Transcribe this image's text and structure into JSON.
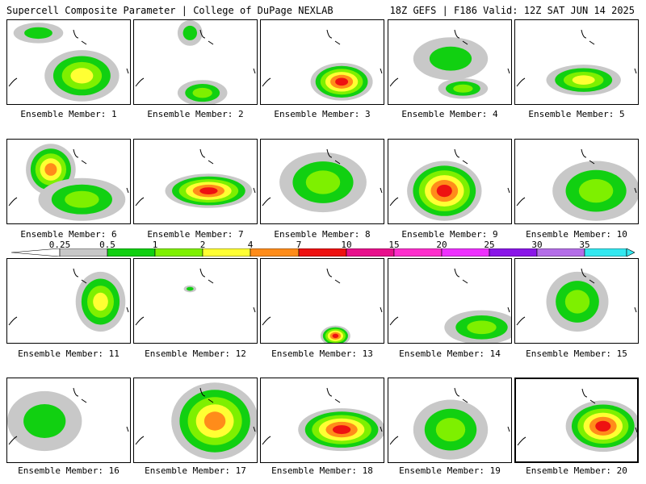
{
  "header": {
    "left_title": "Supercell Composite Parameter | College of DuPage NEXLAB",
    "right_title": "18Z GEFS | F186 Valid: 12Z SAT JUN 14 2025"
  },
  "colorbar": {
    "labels": [
      "0.25",
      "0.5",
      "1",
      "2",
      "4",
      "7",
      "10",
      "15",
      "20",
      "25",
      "30",
      "35"
    ],
    "colors": [
      "#c8c8c8",
      "#11d011",
      "#7ef000",
      "#ffff33",
      "#ff8c1a",
      "#ee1111",
      "#e8108c",
      "#ff2ecd",
      "#ee30ff",
      "#8a16e8",
      "#b46ee8",
      "#33e8f0"
    ]
  },
  "contour_colors": {
    "gray": "#c8c8c8",
    "green": "#11d011",
    "lime": "#7ef000",
    "yellow": "#ffff33",
    "orange": "#ff8c1a",
    "red": "#ee1111"
  },
  "members": [
    {
      "label": "Ensemble Member: 1",
      "blobs": [
        [
          0.25,
          0.15,
          0.2,
          0.12,
          1
        ],
        [
          0.6,
          0.65,
          0.3,
          0.3,
          3
        ]
      ]
    },
    {
      "label": "Ensemble Member: 2",
      "blobs": [
        [
          0.45,
          0.15,
          0.1,
          0.15,
          1
        ],
        [
          0.55,
          0.85,
          0.2,
          0.15,
          2
        ]
      ]
    },
    {
      "label": "Ensemble Member: 3",
      "blobs": [
        [
          0.65,
          0.72,
          0.25,
          0.22,
          5
        ]
      ]
    },
    {
      "label": "Ensemble Member: 4",
      "blobs": [
        [
          0.5,
          0.45,
          0.3,
          0.25,
          1
        ],
        [
          0.6,
          0.8,
          0.2,
          0.12,
          2
        ]
      ]
    },
    {
      "label": "Ensemble Member: 5",
      "blobs": [
        [
          0.55,
          0.7,
          0.3,
          0.18,
          3
        ]
      ]
    },
    {
      "label": "Ensemble Member: 6",
      "blobs": [
        [
          0.35,
          0.35,
          0.2,
          0.3,
          4
        ],
        [
          0.6,
          0.7,
          0.35,
          0.25,
          2
        ]
      ]
    },
    {
      "label": "Ensemble Member: 7",
      "blobs": [
        [
          0.6,
          0.6,
          0.35,
          0.2,
          5
        ]
      ]
    },
    {
      "label": "Ensemble Member: 8",
      "blobs": [
        [
          0.5,
          0.5,
          0.35,
          0.35,
          2
        ]
      ]
    },
    {
      "label": "Ensemble Member: 9",
      "blobs": [
        [
          0.45,
          0.6,
          0.3,
          0.35,
          5
        ]
      ]
    },
    {
      "label": "Ensemble Member: 10",
      "blobs": [
        [
          0.65,
          0.6,
          0.35,
          0.35,
          2
        ]
      ]
    },
    {
      "label": "Ensemble Member: 11",
      "blobs": [
        [
          0.75,
          0.5,
          0.2,
          0.35,
          3
        ]
      ]
    },
    {
      "label": "Ensemble Member: 12",
      "blobs": [
        [
          0.45,
          0.35,
          0.05,
          0.04,
          1
        ]
      ]
    },
    {
      "label": "Ensemble Member: 13",
      "blobs": [
        [
          0.6,
          0.9,
          0.12,
          0.12,
          5
        ]
      ]
    },
    {
      "label": "Ensemble Member: 14",
      "blobs": [
        [
          0.75,
          0.8,
          0.3,
          0.2,
          2
        ]
      ]
    },
    {
      "label": "Ensemble Member: 15",
      "blobs": [
        [
          0.5,
          0.5,
          0.25,
          0.35,
          2
        ]
      ]
    },
    {
      "label": "Ensemble Member: 16",
      "blobs": [
        [
          0.3,
          0.5,
          0.3,
          0.35,
          1
        ]
      ]
    },
    {
      "label": "Ensemble Member: 17",
      "blobs": [
        [
          0.65,
          0.5,
          0.35,
          0.45,
          4
        ]
      ]
    },
    {
      "label": "Ensemble Member: 18",
      "blobs": [
        [
          0.65,
          0.6,
          0.35,
          0.25,
          5
        ]
      ]
    },
    {
      "label": "Ensemble Member: 19",
      "blobs": [
        [
          0.5,
          0.6,
          0.3,
          0.35,
          2
        ]
      ]
    },
    {
      "label": "Ensemble Member: 20",
      "blobs": [
        [
          0.7,
          0.55,
          0.3,
          0.3,
          5
        ]
      ]
    }
  ]
}
